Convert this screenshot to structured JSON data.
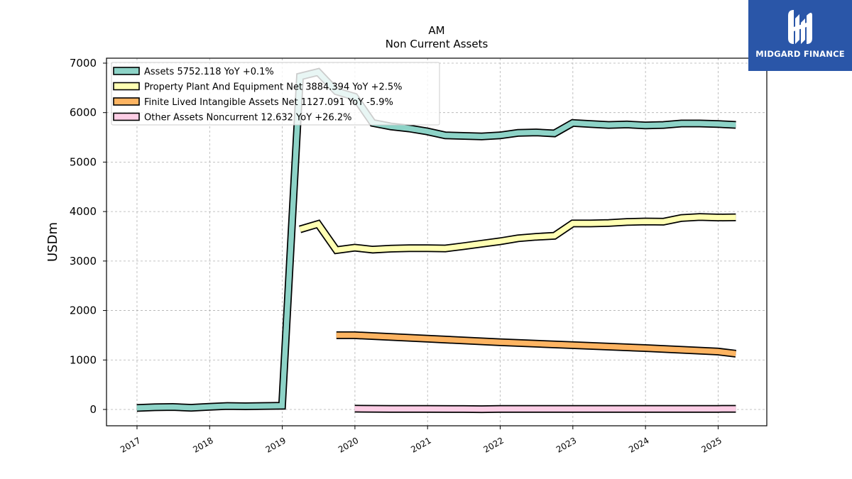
{
  "chart_data": {
    "type": "line",
    "title": "AM",
    "subtitle": "Non Current  Assets",
    "ylabel": "USDm",
    "xlabel": "",
    "ylim": [
      -330,
      7100
    ],
    "xlim": [
      2016.58,
      2025.67
    ],
    "yticks": [
      0,
      1000,
      2000,
      3000,
      4000,
      5000,
      6000,
      7000
    ],
    "xticks": [
      "2017",
      "2018",
      "2019",
      "2020",
      "2021",
      "2022",
      "2023",
      "2024",
      "2025"
    ],
    "grid": true,
    "legend_position": "top-left",
    "series": [
      {
        "name": "Assets  5752.118 YoY +0.1%",
        "color": "#8dd3c7",
        "x": [
          "2016-12-31",
          "2017-03-31",
          "2017-06-30",
          "2017-09-30",
          "2017-12-31",
          "2018-03-31",
          "2018-06-30",
          "2018-09-30",
          "2018-12-31",
          "2019-03-31",
          "2019-06-30",
          "2019-09-30",
          "2019-12-31",
          "2020-03-31",
          "2020-06-30",
          "2020-09-30",
          "2020-12-31",
          "2021-03-31",
          "2021-06-30",
          "2021-09-30",
          "2021-12-31",
          "2022-03-31",
          "2022-06-30",
          "2022-09-30",
          "2022-12-31",
          "2023-03-31",
          "2023-06-30",
          "2023-09-30",
          "2023-12-31",
          "2024-03-31",
          "2024-06-30",
          "2024-09-30",
          "2024-12-31",
          "2025-03-31"
        ],
        "values": [
          30,
          45,
          50,
          35,
          55,
          70,
          65,
          70,
          75,
          6730,
          6820,
          6430,
          6320,
          5790,
          5720,
          5680,
          5620,
          5540,
          5530,
          5520,
          5540,
          5590,
          5600,
          5580,
          5790,
          5770,
          5750,
          5760,
          5740,
          5750,
          5780,
          5780,
          5770,
          5752
        ]
      },
      {
        "name": "Property Plant And Equipment Net  3884.394 YoY +2.5%",
        "color": "#ffffb3",
        "x": [
          "2019-03-31",
          "2019-06-30",
          "2019-09-30",
          "2019-12-31",
          "2020-03-31",
          "2020-06-30",
          "2020-09-30",
          "2020-12-31",
          "2021-03-31",
          "2021-06-30",
          "2021-09-30",
          "2021-12-31",
          "2022-03-31",
          "2022-06-30",
          "2022-09-30",
          "2022-12-31",
          "2023-03-31",
          "2023-06-30",
          "2023-09-30",
          "2023-12-31",
          "2024-03-31",
          "2024-06-30",
          "2024-09-30",
          "2024-12-31",
          "2025-03-31"
        ],
        "values": [
          3640,
          3750,
          3220,
          3270,
          3230,
          3250,
          3260,
          3260,
          3255,
          3300,
          3350,
          3400,
          3460,
          3490,
          3510,
          3760,
          3760,
          3770,
          3790,
          3800,
          3795,
          3870,
          3890,
          3880,
          3884
        ]
      },
      {
        "name": "Finite Lived Intangible Assets Net  1127.091 YoY -5.9%",
        "color": "#fdb462",
        "x": [
          "2019-09-30",
          "2019-12-31",
          "2020-12-31",
          "2021-12-31",
          "2022-12-31",
          "2023-12-31",
          "2024-12-31",
          "2025-03-31"
        ],
        "values": [
          1500,
          1500,
          1430,
          1360,
          1300,
          1240,
          1170,
          1127
        ]
      },
      {
        "name": "Other Assets Noncurrent  12.632 YoY +26.2%",
        "color": "#fccde5",
        "x": [
          "2019-12-31",
          "2020-06-30",
          "2020-12-31",
          "2021-06-30",
          "2021-09-30",
          "2021-12-31",
          "2022-06-30",
          "2022-12-31",
          "2023-06-30",
          "2023-12-31",
          "2024-06-30",
          "2024-12-31",
          "2025-03-31"
        ],
        "values": [
          15,
          12,
          10,
          8,
          5,
          10,
          12,
          12,
          12,
          10,
          10,
          12,
          12.632
        ]
      }
    ]
  },
  "logo": {
    "text": "MIDGARD FINANCE",
    "color": "#2a56a8"
  }
}
